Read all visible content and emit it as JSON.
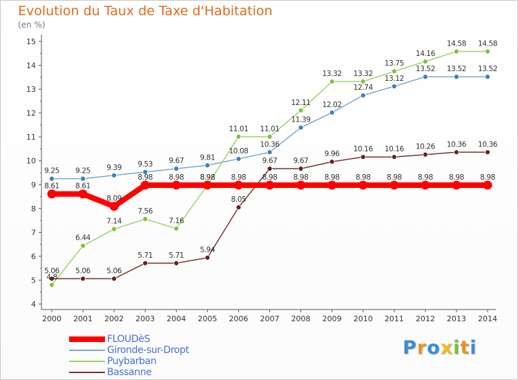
{
  "title": "Evolution du Taux de Taxe d'Habitation",
  "subtitle": "(en %)",
  "brand": {
    "letters": [
      {
        "ch": "P",
        "color": "#3a8fd0"
      },
      {
        "ch": "r",
        "color": "#e8922a"
      },
      {
        "ch": "o",
        "color": "#3a8fd0"
      },
      {
        "ch": "x",
        "color": "#f0b823"
      },
      {
        "ch": "i",
        "color": "#7bbf3a"
      },
      {
        "ch": "t",
        "color": "#e8922a"
      },
      {
        "ch": "i",
        "color": "#3a8fd0"
      }
    ]
  },
  "chart_data": {
    "type": "line",
    "x": [
      2000,
      2001,
      2002,
      2003,
      2004,
      2005,
      2006,
      2007,
      2008,
      2009,
      2010,
      2011,
      2012,
      2013,
      2014
    ],
    "ylim": [
      4,
      15
    ],
    "yticks": [
      4,
      5,
      6,
      7,
      8,
      9,
      10,
      11,
      12,
      13,
      14,
      15
    ],
    "grid": false,
    "legend_position": "bottom-left",
    "series": [
      {
        "name": "FLOUDèS",
        "color": "#ff0000",
        "text_color": "#4a6fd8",
        "marker_color": "#ff0000",
        "thick": true,
        "values": [
          8.61,
          8.61,
          8.09,
          8.98,
          8.98,
          8.98,
          8.98,
          8.98,
          8.98,
          8.98,
          8.98,
          8.98,
          8.98,
          8.98,
          8.98
        ],
        "labels": [
          "8.61",
          "8.61",
          "8.09",
          "8.98",
          "8.98",
          "8.98",
          "8.98",
          "8.98",
          "8.98",
          "8.98",
          "8.98",
          "8.98",
          "8.98",
          "8.98",
          "8.98"
        ]
      },
      {
        "name": "Gironde-sur-Dropt",
        "color": "#7aa7cf",
        "text_color": "#4a6fd8",
        "marker_color": "#3d7fc0",
        "thick": false,
        "values": [
          9.25,
          9.25,
          9.39,
          9.53,
          9.67,
          9.81,
          10.08,
          10.36,
          11.39,
          12.02,
          12.74,
          13.12,
          13.52,
          13.52,
          13.52
        ],
        "labels": [
          "9.25",
          "9.25",
          "9.39",
          "9.53",
          "9.67",
          "9.81",
          "10.08",
          "10.36",
          "11.39",
          "12.02",
          "12.74",
          "13.12",
          "13.52",
          "13.52",
          "13.52"
        ]
      },
      {
        "name": "Puybarban",
        "color": "#9ad66a",
        "text_color": "#4a6fd8",
        "marker_color": "#7ec43c",
        "thick": false,
        "values": [
          4.8,
          6.44,
          7.14,
          7.56,
          7.16,
          8.98,
          11.01,
          11.01,
          12.11,
          13.32,
          13.32,
          13.75,
          14.16,
          14.58,
          14.58
        ],
        "labels": [
          "4.8",
          "6.44",
          "7.14",
          "7.56",
          "7.16",
          "8.98",
          "11.01",
          "11.01",
          "12.11",
          "13.32",
          "13.32",
          "13.75",
          "14.16",
          "14.58",
          "14.58"
        ]
      },
      {
        "name": "Bassanne",
        "color": "#7a3030",
        "text_color": "#4a6fd8",
        "marker_color": "#6b1f1f",
        "thick": false,
        "values": [
          5.06,
          5.06,
          5.06,
          5.71,
          5.71,
          5.94,
          8.05,
          9.67,
          9.67,
          9.96,
          10.16,
          10.16,
          10.26,
          10.36,
          10.36
        ],
        "labels": [
          "5.06",
          "5.06",
          "5.06",
          "5.71",
          "5.71",
          "5.94",
          "8.05",
          "9.67",
          "9.67",
          "9.96",
          "10.16",
          "10.16",
          "10.26",
          "10.36",
          "10.36"
        ]
      }
    ]
  }
}
